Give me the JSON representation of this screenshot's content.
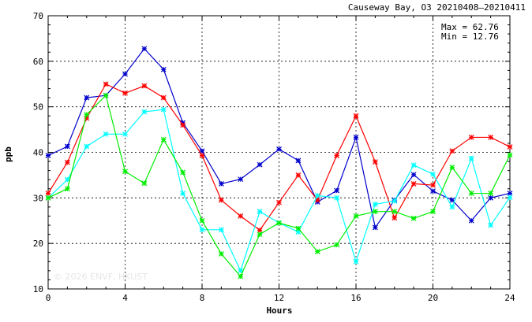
{
  "chart_data": {
    "type": "line",
    "title": "Causeway Bay, O3 20210408–20210411",
    "xlabel": "Hours",
    "ylabel": "ppb",
    "xlim": [
      0,
      24
    ],
    "ylim": [
      10,
      70
    ],
    "x_ticks": [
      0,
      4,
      8,
      12,
      16,
      20,
      24
    ],
    "y_ticks": [
      10,
      20,
      30,
      40,
      50,
      60,
      70
    ],
    "grid": true,
    "stats": {
      "max_label": "Max = 62.76",
      "min_label": "Min = 12.76"
    },
    "watermark": "© 2026 ENVF, HKUST",
    "x": [
      0,
      1,
      2,
      3,
      4,
      5,
      6,
      7,
      8,
      9,
      10,
      11,
      12,
      13,
      14,
      15,
      16,
      17,
      18,
      19,
      20,
      21,
      22,
      23,
      24
    ],
    "series": [
      {
        "color": "#0000cc",
        "values": [
          39.3,
          41.3,
          52.0,
          52.5,
          57.2,
          62.76,
          58.2,
          46.5,
          40.3,
          33.1,
          34.1,
          37.3,
          40.7,
          38.2,
          29.1,
          31.6,
          43.3,
          23.5,
          29.5,
          35.1,
          31.5,
          29.5,
          25.0,
          30.0,
          31.0
        ]
      },
      {
        "color": "#ff0000",
        "values": [
          31.0,
          37.8,
          47.5,
          55.0,
          53.0,
          54.6,
          52.0,
          46.0,
          39.3,
          29.5,
          26.0,
          22.9,
          29.0,
          35.0,
          29.5,
          39.3,
          48.0,
          37.9,
          25.6,
          33.1,
          32.8,
          40.3,
          43.3,
          43.3,
          41.2
        ]
      },
      {
        "color": "#00ffff",
        "values": [
          30.0,
          34.0,
          41.3,
          44.0,
          44.0,
          48.9,
          49.4,
          31.0,
          23.0,
          23.0,
          14.0,
          27.0,
          24.5,
          22.5,
          30.5,
          30.0,
          16.0,
          28.6,
          29.3,
          37.2,
          35.2,
          28.0,
          38.7,
          24.0,
          30.1
        ]
      },
      {
        "color": "#00ee00",
        "values": [
          30.0,
          32.0,
          48.3,
          52.5,
          35.8,
          33.2,
          42.8,
          35.6,
          25.0,
          17.7,
          12.76,
          22.0,
          24.5,
          23.3,
          18.2,
          19.7,
          26.0,
          27.0,
          27.0,
          25.5,
          27.0,
          36.7,
          31.0,
          31.0,
          39.4
        ]
      }
    ]
  }
}
